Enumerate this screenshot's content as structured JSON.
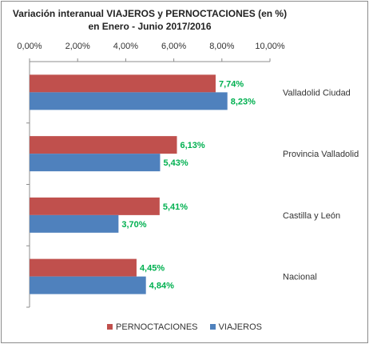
{
  "chart_data": {
    "type": "bar",
    "orientation": "horizontal",
    "title_line1": "Variación  interanual VIAJEROS y PERNOCTACIONES (en %)",
    "title_line2": "en Enero - Junio 2017/2016",
    "categories": [
      "Valladolid Ciudad",
      "Provincia Valladolid",
      "Castilla y León",
      "Nacional"
    ],
    "series": [
      {
        "name": "PERNOCTACIONES",
        "color": "#c0504d",
        "values": [
          7.74,
          6.13,
          5.41,
          4.45
        ],
        "labels": [
          "7,74%",
          "6,13%",
          "5,41%",
          "4,45%"
        ]
      },
      {
        "name": "VIAJEROS",
        "color": "#4f81bd",
        "values": [
          8.23,
          5.43,
          3.7,
          4.84
        ],
        "labels": [
          "8,23%",
          "5,43%",
          "3,70%",
          "4,84%"
        ]
      }
    ],
    "x_ticks": [
      "0,00%",
      "2,00%",
      "4,00%",
      "6,00%",
      "8,00%",
      "10,00%"
    ],
    "xlim": [
      0,
      10
    ],
    "x_axis_position": "top",
    "category_labels_position": "right",
    "data_label_color": "#00b050",
    "grid": false,
    "legend_position": "bottom"
  }
}
